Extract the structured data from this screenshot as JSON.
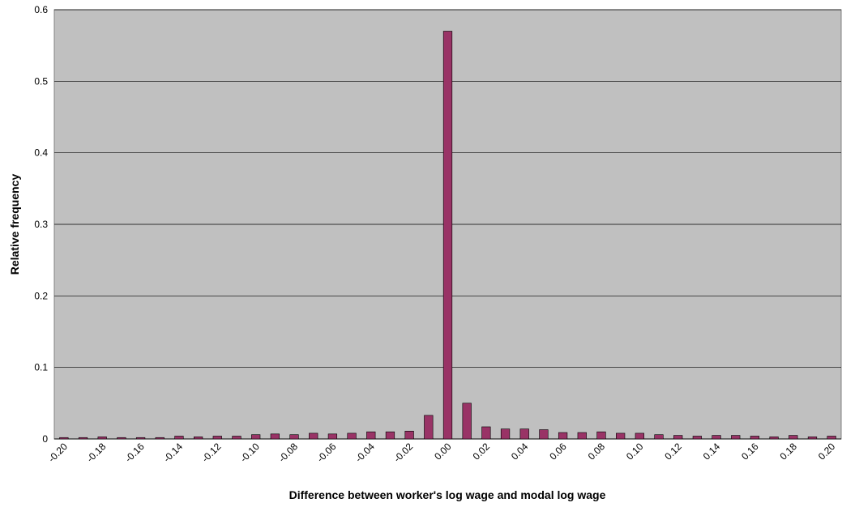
{
  "chart_data": {
    "type": "bar",
    "xlabel": "Difference between worker's log wage and modal log wage",
    "ylabel": "Relative frequency",
    "ylim": [
      0,
      0.6
    ],
    "yticks": [
      "0",
      "0.1",
      "0.2",
      "0.3",
      "0.4",
      "0.5",
      "0.6"
    ],
    "categories": [
      "-0.20",
      "-0.19",
      "-0.18",
      "-0.17",
      "-0.16",
      "-0.15",
      "-0.14",
      "-0.13",
      "-0.12",
      "-0.11",
      "-0.10",
      "-0.09",
      "-0.08",
      "-0.07",
      "-0.06",
      "-0.05",
      "-0.04",
      "-0.03",
      "-0.02",
      "-0.01",
      "0.00",
      "0.01",
      "0.02",
      "0.03",
      "0.04",
      "0.05",
      "0.06",
      "0.07",
      "0.08",
      "0.09",
      "0.10",
      "0.11",
      "0.12",
      "0.13",
      "0.14",
      "0.15",
      "0.16",
      "0.17",
      "0.18",
      "0.19",
      "0.20"
    ],
    "xtick_labels": [
      "-0.20",
      "-0.18",
      "-0.16",
      "-0.14",
      "-0.12",
      "-0.10",
      "-0.08",
      "-0.06",
      "-0.04",
      "-0.02",
      "0.00",
      "0.02",
      "0.04",
      "0.06",
      "0.08",
      "0.10",
      "0.12",
      "0.14",
      "0.16",
      "0.18",
      "0.20"
    ],
    "values": [
      0.002,
      0.002,
      0.003,
      0.002,
      0.002,
      0.002,
      0.004,
      0.003,
      0.004,
      0.004,
      0.006,
      0.007,
      0.006,
      0.008,
      0.007,
      0.008,
      0.01,
      0.01,
      0.011,
      0.033,
      0.57,
      0.05,
      0.017,
      0.014,
      0.014,
      0.013,
      0.009,
      0.009,
      0.01,
      0.008,
      0.008,
      0.006,
      0.005,
      0.004,
      0.005,
      0.005,
      0.004,
      0.003,
      0.005,
      0.003,
      0.004
    ],
    "grid": true,
    "legend": "none",
    "colors": {
      "plot_background": "#c0c0c0",
      "bar_fill": "#993366",
      "bar_stroke": "#000000",
      "gridline": "#000000"
    }
  }
}
